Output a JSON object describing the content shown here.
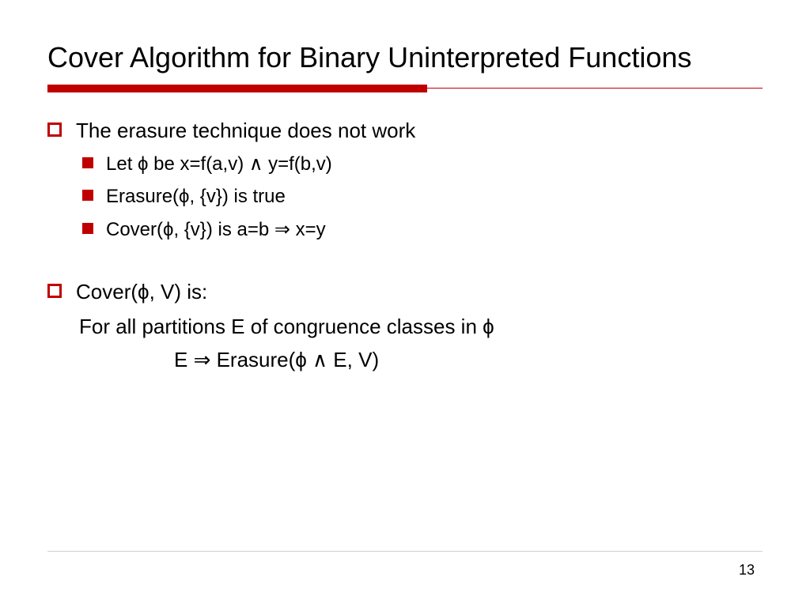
{
  "title": "Cover Algorithm for Binary Uninterpreted Functions",
  "accent_color": "#c00000",
  "body": {
    "item1": {
      "text": "The erasure technique does not work",
      "sub1": "Let ϕ be x=f(a,v) ∧ y=f(b,v)",
      "sub2": "Erasure(ϕ, {v}) is true",
      "sub3": "Cover(ϕ, {v}) is a=b ⇒ x=y"
    },
    "item2": {
      "text": "Cover(ϕ, V) is:",
      "cont1": "For all partitions E of congruence classes in ϕ",
      "cont2": "E ⇒ Erasure(ϕ ∧ E, V)"
    }
  },
  "page_number": "13"
}
